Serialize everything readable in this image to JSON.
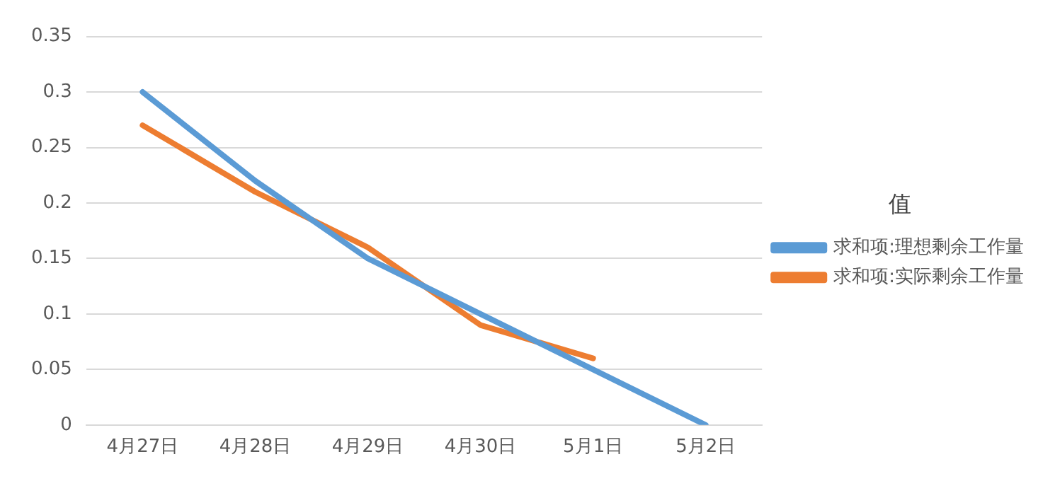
{
  "chart_data": {
    "type": "line",
    "categories": [
      "4月27日",
      "4月28日",
      "4月29日",
      "4月30日",
      "5月1日",
      "5月2日"
    ],
    "series": [
      {
        "name": "求和项:理想剩余工作量",
        "color": "#5b9bd5",
        "values": [
          0.3,
          0.22,
          0.15,
          0.1,
          0.05,
          0
        ]
      },
      {
        "name": "求和项:实际剩余工作量",
        "color": "#ed7d31",
        "values": [
          0.27,
          0.21,
          0.16,
          0.09,
          0.06,
          null
        ]
      }
    ],
    "ylim": [
      0,
      0.35
    ],
    "yticks": [
      0,
      0.05,
      0.1,
      0.15,
      0.2,
      0.25,
      0.3,
      0.35
    ],
    "grid": "y",
    "legend": "right",
    "legend_title": "值",
    "marker": "none",
    "line_style": "solid"
  }
}
